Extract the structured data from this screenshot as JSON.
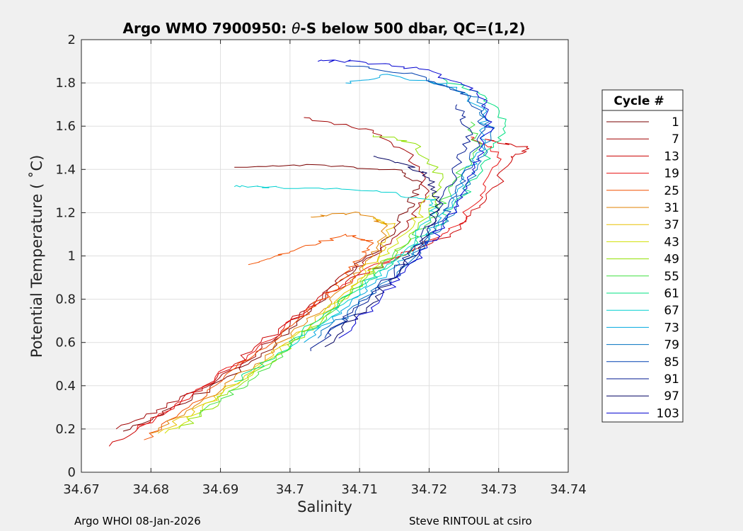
{
  "chart_data": {
    "type": "line",
    "title_main": "Argo WMO 7900950: ",
    "title_theta": "θ",
    "title_rest": "-S below 500 dbar,  QC=(1,2)",
    "xlabel": "Salinity",
    "ylabel": "Potential Temperature ( ˚C)",
    "xlim": [
      34.67,
      34.74
    ],
    "ylim": [
      0,
      2
    ],
    "xticks": [
      "34.67",
      "34.68",
      "34.69",
      "34.7",
      "34.71",
      "34.72",
      "34.73",
      "34.74"
    ],
    "yticks": [
      "0",
      "0.2",
      "0.4",
      "0.6",
      "0.8",
      "1",
      "1.2",
      "1.4",
      "1.6",
      "1.8",
      "2"
    ],
    "grid": true,
    "legend": {
      "title": "Cycle #",
      "placement": "right-outside",
      "entries": [
        {
          "label": "1",
          "color": "#7a0000"
        },
        {
          "label": "7",
          "color": "#a00000"
        },
        {
          "label": "13",
          "color": "#cc0000"
        },
        {
          "label": "19",
          "color": "#e81010"
        },
        {
          "label": "25",
          "color": "#f25000"
        },
        {
          "label": "31",
          "color": "#e08000"
        },
        {
          "label": "37",
          "color": "#e8c000"
        },
        {
          "label": "43",
          "color": "#d0e000"
        },
        {
          "label": "49",
          "color": "#90e000"
        },
        {
          "label": "55",
          "color": "#40e040"
        },
        {
          "label": "61",
          "color": "#00e080"
        },
        {
          "label": "67",
          "color": "#00d0d0"
        },
        {
          "label": "73",
          "color": "#00a8e0"
        },
        {
          "label": "79",
          "color": "#0070c0"
        },
        {
          "label": "85",
          "color": "#0040b0"
        },
        {
          "label": "91",
          "color": "#001890"
        },
        {
          "label": "97",
          "color": "#000060"
        },
        {
          "label": "103",
          "color": "#0000d0"
        }
      ]
    },
    "series": [
      {
        "name": "1",
        "color": "#7a0000",
        "points": [
          [
            34.676,
            0.19
          ],
          [
            34.685,
            0.32
          ],
          [
            34.694,
            0.5
          ],
          [
            34.701,
            0.68
          ],
          [
            34.707,
            0.88
          ],
          [
            34.713,
            1.05
          ],
          [
            34.717,
            1.22
          ],
          [
            34.719,
            1.34
          ],
          [
            34.715,
            1.4
          ],
          [
            34.705,
            1.42
          ],
          [
            34.692,
            1.41
          ]
        ]
      },
      {
        "name": "7",
        "color": "#a00000",
        "points": [
          [
            34.675,
            0.2
          ],
          [
            34.684,
            0.33
          ],
          [
            34.693,
            0.5
          ],
          [
            34.7,
            0.68
          ],
          [
            34.706,
            0.86
          ],
          [
            34.712,
            1.0
          ],
          [
            34.717,
            1.15
          ],
          [
            34.72,
            1.3
          ],
          [
            34.717,
            1.48
          ],
          [
            34.712,
            1.58
          ],
          [
            34.702,
            1.64
          ]
        ]
      },
      {
        "name": "13",
        "color": "#cc0000",
        "points": [
          [
            34.674,
            0.12
          ],
          [
            34.683,
            0.3
          ],
          [
            34.692,
            0.5
          ],
          [
            34.7,
            0.7
          ],
          [
            34.708,
            0.88
          ],
          [
            34.716,
            1.0
          ],
          [
            34.723,
            1.1
          ],
          [
            34.728,
            1.25
          ],
          [
            34.732,
            1.45
          ],
          [
            34.734,
            1.5
          ],
          [
            34.728,
            1.54
          ]
        ]
      },
      {
        "name": "19",
        "color": "#e81010",
        "points": [
          [
            34.678,
            0.2
          ],
          [
            34.686,
            0.36
          ],
          [
            34.695,
            0.56
          ],
          [
            34.702,
            0.74
          ],
          [
            34.71,
            0.92
          ],
          [
            34.718,
            1.04
          ],
          [
            34.724,
            1.14
          ],
          [
            34.728,
            1.3
          ],
          [
            34.73,
            1.48
          ],
          [
            34.726,
            1.55
          ]
        ]
      },
      {
        "name": "25",
        "color": "#f25000",
        "points": [
          [
            34.679,
            0.15
          ],
          [
            34.686,
            0.32
          ],
          [
            34.694,
            0.52
          ],
          [
            34.701,
            0.7
          ],
          [
            34.707,
            0.86
          ],
          [
            34.71,
            0.98
          ],
          [
            34.712,
            1.06
          ],
          [
            34.708,
            1.1
          ],
          [
            34.7,
            1.02
          ],
          [
            34.694,
            0.96
          ]
        ]
      },
      {
        "name": "31",
        "color": "#e08000",
        "points": [
          [
            34.68,
            0.18
          ],
          [
            34.687,
            0.32
          ],
          [
            34.695,
            0.5
          ],
          [
            34.702,
            0.68
          ],
          [
            34.708,
            0.86
          ],
          [
            34.712,
            1.0
          ],
          [
            34.714,
            1.14
          ],
          [
            34.71,
            1.2
          ],
          [
            34.703,
            1.18
          ]
        ]
      },
      {
        "name": "37",
        "color": "#e8c000",
        "points": [
          [
            34.681,
            0.18
          ],
          [
            34.688,
            0.32
          ],
          [
            34.696,
            0.5
          ],
          [
            34.703,
            0.68
          ],
          [
            34.709,
            0.86
          ],
          [
            34.713,
            1.02
          ],
          [
            34.715,
            1.14
          ],
          [
            34.712,
            1.18
          ]
        ]
      },
      {
        "name": "43",
        "color": "#d0e000",
        "points": [
          [
            34.682,
            0.18
          ],
          [
            34.689,
            0.33
          ],
          [
            34.697,
            0.52
          ],
          [
            34.704,
            0.7
          ],
          [
            34.71,
            0.88
          ],
          [
            34.714,
            1.02
          ],
          [
            34.718,
            1.16
          ],
          [
            34.72,
            1.28
          ]
        ]
      },
      {
        "name": "49",
        "color": "#90e000",
        "points": [
          [
            34.684,
            0.2
          ],
          [
            34.691,
            0.36
          ],
          [
            34.698,
            0.54
          ],
          [
            34.705,
            0.72
          ],
          [
            34.711,
            0.9
          ],
          [
            34.716,
            1.04
          ],
          [
            34.72,
            1.2
          ],
          [
            34.722,
            1.36
          ],
          [
            34.718,
            1.52
          ],
          [
            34.712,
            1.56
          ]
        ]
      },
      {
        "name": "55",
        "color": "#40e040",
        "points": [
          [
            34.687,
            0.26
          ],
          [
            34.694,
            0.42
          ],
          [
            34.7,
            0.58
          ],
          [
            34.706,
            0.74
          ],
          [
            34.712,
            0.92
          ],
          [
            34.717,
            1.06
          ],
          [
            34.721,
            1.2
          ],
          [
            34.724,
            1.36
          ],
          [
            34.727,
            1.5
          ],
          [
            34.726,
            1.62
          ]
        ]
      },
      {
        "name": "61",
        "color": "#00e080",
        "points": [
          [
            34.692,
            0.42
          ],
          [
            34.698,
            0.54
          ],
          [
            34.704,
            0.7
          ],
          [
            34.71,
            0.86
          ],
          [
            34.716,
            1.0
          ],
          [
            34.721,
            1.14
          ],
          [
            34.725,
            1.28
          ],
          [
            34.728,
            1.44
          ],
          [
            34.731,
            1.6
          ],
          [
            34.728,
            1.74
          ],
          [
            34.722,
            1.82
          ]
        ]
      },
      {
        "name": "67",
        "color": "#00d0d0",
        "points": [
          [
            34.7,
            0.58
          ],
          [
            34.706,
            0.72
          ],
          [
            34.712,
            0.9
          ],
          [
            34.717,
            1.04
          ],
          [
            34.72,
            1.18
          ],
          [
            34.721,
            1.26
          ],
          [
            34.712,
            1.3
          ],
          [
            34.698,
            1.32
          ],
          [
            34.692,
            1.32
          ]
        ]
      },
      {
        "name": "73",
        "color": "#00a8e0",
        "points": [
          [
            34.702,
            0.6
          ],
          [
            34.708,
            0.76
          ],
          [
            34.714,
            0.92
          ],
          [
            34.719,
            1.06
          ],
          [
            34.722,
            1.2
          ],
          [
            34.725,
            1.36
          ],
          [
            34.728,
            1.52
          ],
          [
            34.728,
            1.66
          ],
          [
            34.724,
            1.78
          ],
          [
            34.714,
            1.84
          ],
          [
            34.708,
            1.8
          ]
        ]
      },
      {
        "name": "79",
        "color": "#0070c0",
        "points": [
          [
            34.704,
            0.62
          ],
          [
            34.71,
            0.78
          ],
          [
            34.716,
            0.94
          ],
          [
            34.72,
            1.08
          ],
          [
            34.724,
            1.24
          ],
          [
            34.727,
            1.42
          ],
          [
            34.729,
            1.58
          ],
          [
            34.727,
            1.72
          ],
          [
            34.72,
            1.82
          ]
        ]
      },
      {
        "name": "85",
        "color": "#0040b0",
        "points": [
          [
            34.705,
            0.62
          ],
          [
            34.711,
            0.8
          ],
          [
            34.717,
            0.96
          ],
          [
            34.721,
            1.12
          ],
          [
            34.724,
            1.28
          ],
          [
            34.726,
            1.44
          ],
          [
            34.728,
            1.6
          ],
          [
            34.726,
            1.74
          ],
          [
            34.718,
            1.84
          ],
          [
            34.708,
            1.88
          ]
        ]
      },
      {
        "name": "91",
        "color": "#001890",
        "points": [
          [
            34.703,
            0.56
          ],
          [
            34.709,
            0.74
          ],
          [
            34.715,
            0.92
          ],
          [
            34.719,
            1.08
          ],
          [
            34.722,
            1.24
          ],
          [
            34.724,
            1.42
          ],
          [
            34.726,
            1.58
          ],
          [
            34.724,
            1.7
          ]
        ]
      },
      {
        "name": "97",
        "color": "#000060",
        "points": [
          [
            34.705,
            0.58
          ],
          [
            34.711,
            0.76
          ],
          [
            34.716,
            0.94
          ],
          [
            34.72,
            1.1
          ],
          [
            34.721,
            1.26
          ],
          [
            34.72,
            1.36
          ],
          [
            34.717,
            1.42
          ],
          [
            34.712,
            1.46
          ]
        ]
      },
      {
        "name": "103",
        "color": "#0000d0",
        "points": [
          [
            34.707,
            0.62
          ],
          [
            34.713,
            0.8
          ],
          [
            34.718,
            0.98
          ],
          [
            34.722,
            1.14
          ],
          [
            34.725,
            1.3
          ],
          [
            34.727,
            1.46
          ],
          [
            34.729,
            1.62
          ],
          [
            34.727,
            1.76
          ],
          [
            34.72,
            1.86
          ],
          [
            34.71,
            1.9
          ],
          [
            34.704,
            1.9
          ]
        ]
      }
    ]
  },
  "footer": {
    "left": "Argo WHOI 08-Jan-2026",
    "right": "Steve RINTOUL at csiro"
  }
}
